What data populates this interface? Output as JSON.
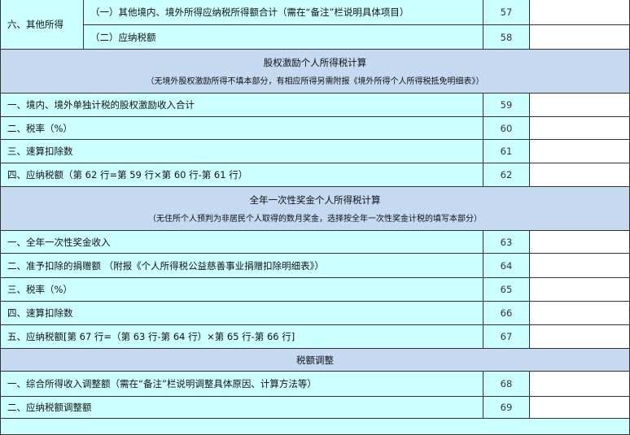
{
  "colors": {
    "row_bg": "#ccffff",
    "section_header_bg": "#c5d9f1",
    "value_bg": "#ffffff"
  },
  "other_income": {
    "group_label": "六、其他所得",
    "rows": [
      {
        "label": "（一）其他境内、境外所得应纳税所得额合计（需在“备注”栏说明具体项目）",
        "line": "57",
        "value": ""
      },
      {
        "label": "（二）应纳税额",
        "line": "58",
        "value": ""
      }
    ]
  },
  "sections": [
    {
      "title": "股权激励个人所得税计算",
      "note": "（无境外股权激励所得不填本部分，有相应所得另需附报《境外所得个人所得税抵免明细表》）",
      "rows": [
        {
          "label": "一、境内、境外单独计税的股权激励收入合计",
          "line": "59",
          "value": ""
        },
        {
          "label": "二、税率（%）",
          "line": "60",
          "value": ""
        },
        {
          "label": "三、速算扣除数",
          "line": "61",
          "value": ""
        },
        {
          "label": "四、应纳税额（第 62 行=第 59 行×第 60 行-第 61 行）",
          "line": "62",
          "value": ""
        }
      ]
    },
    {
      "title": "全年一次性奖金个人所得税计算",
      "note": "（无住所个人预判为非居民个人取得的数月奖金，选择按全年一次性奖金计税的填写本部分）",
      "rows": [
        {
          "label": "一、全年一次性奖金收入",
          "line": "63",
          "value": ""
        },
        {
          "label": "二、准予扣除的捐赠额 （附报《个人所得税公益慈善事业捐赠扣除明细表》）",
          "line": "64",
          "value": ""
        },
        {
          "label": "三、税率（%）",
          "line": "65",
          "value": ""
        },
        {
          "label": "四、速算扣除数",
          "line": "66",
          "value": ""
        },
        {
          "label": "五、应纳税额[第 67 行=（第 63 行-第 64 行）×第 65 行-第 66 行]",
          "line": "67",
          "value": ""
        }
      ]
    },
    {
      "title": "税额调整",
      "rows": [
        {
          "label": "一、综合所得收入调整额（需在“备注”栏说明调整具体原因、计算方法等）",
          "line": "68",
          "value": ""
        },
        {
          "label": "二、应纳税额调整额",
          "line": "69",
          "value": ""
        }
      ]
    }
  ]
}
